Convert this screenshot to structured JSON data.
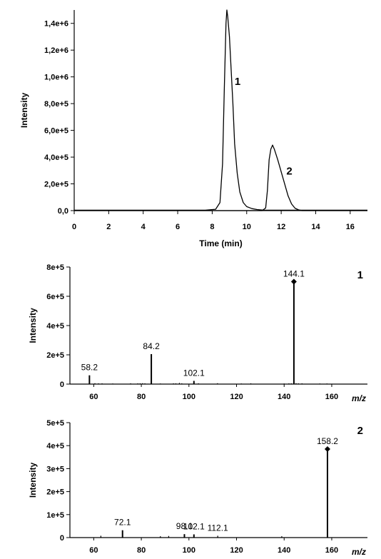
{
  "chart_data": [
    {
      "type": "line",
      "xlabel": "Time (min)",
      "ylabel": "Intensity",
      "xlim": [
        0,
        17
      ],
      "ylim": [
        0,
        1500000
      ],
      "xticks": [
        0,
        2,
        4,
        6,
        8,
        10,
        12,
        14,
        16
      ],
      "yticks": [
        0,
        200000,
        400000,
        600000,
        800000,
        1000000,
        1200000,
        1400000
      ],
      "ytick_labels": [
        "0,0",
        "2,0e+5",
        "4,0e+5",
        "6,0e+5",
        "8,0e+5",
        "1,0e+6",
        "1,2e+6",
        "1,4e+6"
      ],
      "series": [
        {
          "peak": "1",
          "x": [
            0,
            7.6,
            8.2,
            8.45,
            8.6,
            8.7,
            8.8,
            8.85,
            8.9,
            9.0,
            9.1,
            9.2,
            9.3,
            9.45,
            9.6,
            9.8,
            10.0,
            10.3,
            10.6,
            11.0,
            17
          ],
          "y": [
            3000,
            3000,
            10000,
            60000,
            350000,
            900000,
            1400000,
            1500000,
            1450000,
            1300000,
            1050000,
            800000,
            500000,
            280000,
            140000,
            60000,
            30000,
            15000,
            8000,
            3000,
            3000
          ]
        },
        {
          "peak": "2",
          "x": [
            0,
            10.9,
            11.1,
            11.2,
            11.3,
            11.4,
            11.5,
            11.6,
            11.8,
            12.0,
            12.2,
            12.4,
            12.6,
            12.8,
            13.0,
            13.2,
            17
          ],
          "y": [
            0,
            0,
            20000,
            150000,
            380000,
            460000,
            490000,
            460000,
            380000,
            290000,
            200000,
            110000,
            50000,
            18000,
            6000,
            0,
            0
          ]
        }
      ],
      "peak_labels": [
        {
          "text": "1",
          "x": 9.3,
          "y": 940000
        },
        {
          "text": "2",
          "x": 12.3,
          "y": 270000
        }
      ]
    },
    {
      "type": "bar",
      "panel_label": "1",
      "ylabel": "Intensity",
      "xlabel": "m/z",
      "xlim": [
        50,
        175
      ],
      "ylim": [
        0,
        800000
      ],
      "xticks": [
        60,
        80,
        100,
        120,
        140,
        160
      ],
      "yticks": [
        0,
        200000,
        400000,
        600000,
        800000
      ],
      "ytick_labels": [
        "0",
        "2e+5",
        "4e+5",
        "6e+5",
        "8e+5"
      ],
      "peaks": [
        {
          "mz": 58.2,
          "intensity": 60000,
          "label": "58.2"
        },
        {
          "mz": 60.5,
          "intensity": 6000
        },
        {
          "mz": 62.0,
          "intensity": 5000
        },
        {
          "mz": 63.5,
          "intensity": 5000
        },
        {
          "mz": 68.0,
          "intensity": 4000
        },
        {
          "mz": 75.5,
          "intensity": 5000
        },
        {
          "mz": 78.5,
          "intensity": 5000
        },
        {
          "mz": 79.5,
          "intensity": 5000
        },
        {
          "mz": 80.5,
          "intensity": 6000
        },
        {
          "mz": 81.5,
          "intensity": 5000
        },
        {
          "mz": 84.2,
          "intensity": 205000,
          "label": "84.2"
        },
        {
          "mz": 88.0,
          "intensity": 4000
        },
        {
          "mz": 93.5,
          "intensity": 5000
        },
        {
          "mz": 94.5,
          "intensity": 5000
        },
        {
          "mz": 96.0,
          "intensity": 8000
        },
        {
          "mz": 97.0,
          "intensity": 5000
        },
        {
          "mz": 102.1,
          "intensity": 22000,
          "label": "102.1"
        },
        {
          "mz": 104.0,
          "intensity": 5000
        },
        {
          "mz": 112.0,
          "intensity": 6000
        },
        {
          "mz": 122.0,
          "intensity": 4000
        },
        {
          "mz": 126.0,
          "intensity": 5000
        },
        {
          "mz": 140.0,
          "intensity": 4000
        },
        {
          "mz": 142.0,
          "intensity": 5000
        },
        {
          "mz": 143.0,
          "intensity": 5000
        },
        {
          "mz": 144.1,
          "intensity": 700000,
          "label": "144.1",
          "marker": "diamond"
        },
        {
          "mz": 145.0,
          "intensity": 6000
        },
        {
          "mz": 146.0,
          "intensity": 5000
        },
        {
          "mz": 147.5,
          "intensity": 5000
        },
        {
          "mz": 155.0,
          "intensity": 4000
        },
        {
          "mz": 158.0,
          "intensity": 4000
        }
      ]
    },
    {
      "type": "bar",
      "panel_label": "2",
      "ylabel": "Intensity",
      "xlabel": "m/z",
      "xlim": [
        50,
        175
      ],
      "ylim": [
        0,
        500000
      ],
      "xticks": [
        60,
        80,
        100,
        120,
        140,
        160
      ],
      "yticks": [
        0,
        100000,
        200000,
        300000,
        400000,
        500000
      ],
      "ytick_labels": [
        "0",
        "1e+5",
        "2e+5",
        "3e+5",
        "4e+5",
        "5e+5"
      ],
      "peaks": [
        {
          "mz": 63.0,
          "intensity": 8000
        },
        {
          "mz": 72.1,
          "intensity": 32000,
          "label": "72.1"
        },
        {
          "mz": 88.0,
          "intensity": 6000
        },
        {
          "mz": 91.5,
          "intensity": 7000
        },
        {
          "mz": 98.1,
          "intensity": 15000,
          "label": "98.1"
        },
        {
          "mz": 102.1,
          "intensity": 14000,
          "label": "102.1"
        },
        {
          "mz": 112.1,
          "intensity": 8000,
          "label": "112.1"
        },
        {
          "mz": 139.0,
          "intensity": 6000
        },
        {
          "mz": 158.2,
          "intensity": 385000,
          "label": "158.2",
          "marker": "diamond"
        }
      ]
    }
  ]
}
